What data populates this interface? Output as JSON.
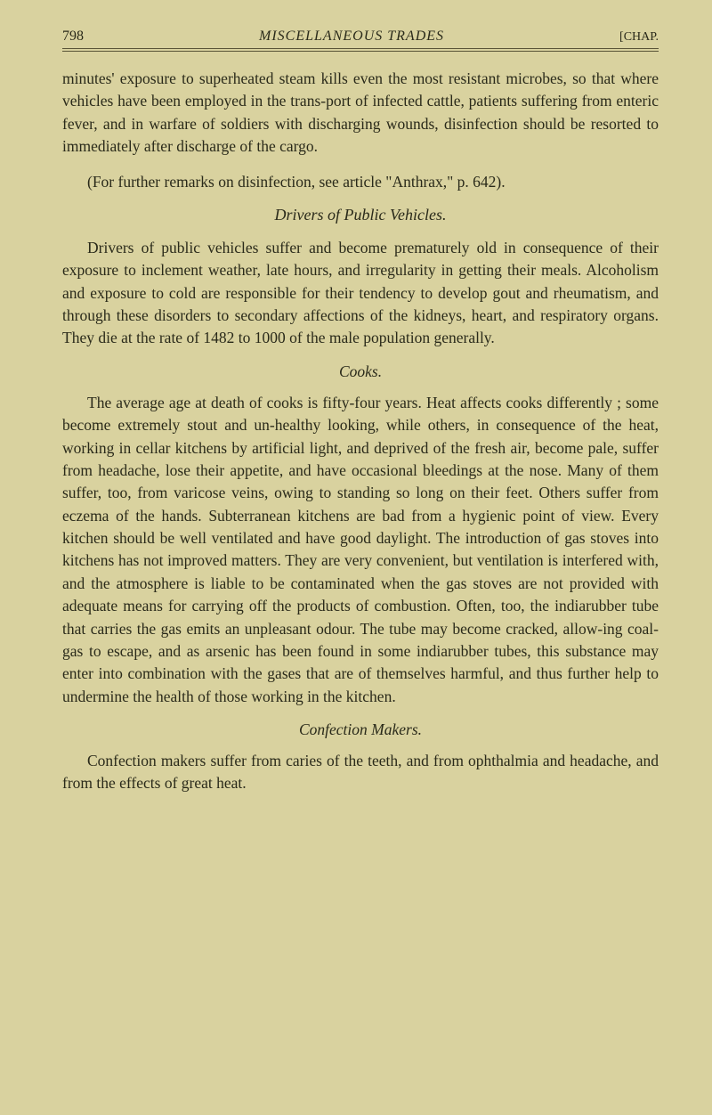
{
  "header": {
    "page_number": "798",
    "running_title": "MISCELLANEOUS TRADES",
    "chap_label": "[CHAP."
  },
  "paragraphs": {
    "p1": "minutes' exposure to superheated steam kills even the most resistant microbes, so that where vehicles have been employed in the trans-port of infected cattle, patients suffering from enteric fever, and in warfare of soldiers with discharging wounds, disinfection should be resorted to immediately after discharge of the cargo.",
    "p2": "(For further remarks on disinfection, see article \"Anthrax,\" p. 642).",
    "section1_title": "Drivers of Public Vehicles.",
    "p3": "Drivers of public vehicles suffer and become prematurely old in consequence of their exposure to inclement weather, late hours, and irregularity in getting their meals. Alcoholism and exposure to cold are responsible for their tendency to develop gout and rheumatism, and through these disorders to secondary affections of the kidneys, heart, and respiratory organs. They die at the rate of 1482 to 1000 of the male population generally.",
    "section2_title": "Cooks.",
    "p4": "The average age at death of cooks is fifty-four years. Heat affects cooks differently ; some become extremely stout and un-healthy looking, while others, in consequence of the heat, working in cellar kitchens by artificial light, and deprived of the fresh air, become pale, suffer from headache, lose their appetite, and have occasional bleedings at the nose. Many of them suffer, too, from varicose veins, owing to standing so long on their feet. Others suffer from eczema of the hands. Subterranean kitchens are bad from a hygienic point of view. Every kitchen should be well ventilated and have good daylight. The introduction of gas stoves into kitchens has not improved matters. They are very convenient, but ventilation is interfered with, and the atmosphere is liable to be contaminated when the gas stoves are not provided with adequate means for carrying off the products of combustion. Often, too, the indiarubber tube that carries the gas emits an unpleasant odour. The tube may become cracked, allow-ing coal-gas to escape, and as arsenic has been found in some indiarubber tubes, this substance may enter into combination with the gases that are of themselves harmful, and thus further help to undermine the health of those working in the kitchen.",
    "section3_title": "Confection Makers.",
    "p5": "Confection makers suffer from caries of the teeth, and from ophthalmia and headache, and from the effects of great heat."
  }
}
